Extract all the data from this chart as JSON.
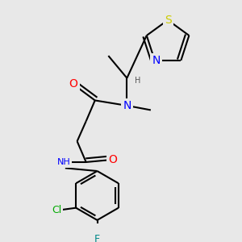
{
  "background_color": "#e8e8e8",
  "atom_colors": {
    "C": "#000000",
    "N": "#0000ff",
    "O": "#ff0000",
    "S": "#cccc00",
    "Cl": "#00aa00",
    "F": "#888800",
    "H": "#555555"
  },
  "bond_color": "#000000",
  "bond_width": 1.5,
  "font_size": 8,
  "figsize": [
    3.0,
    3.0
  ],
  "dpi": 100
}
